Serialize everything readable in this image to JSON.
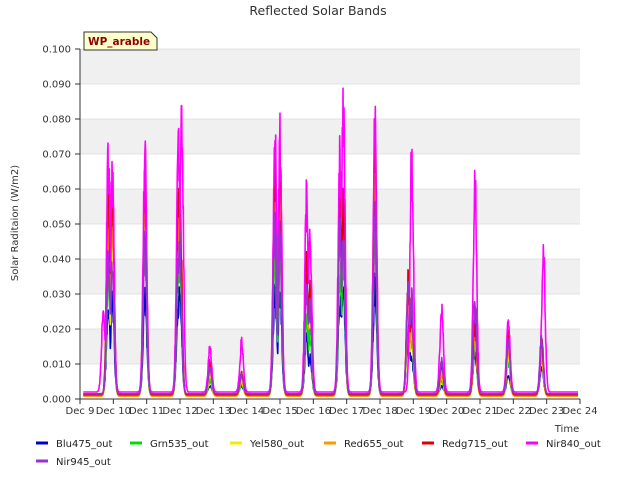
{
  "chart_data": {
    "type": "line",
    "title": "Reflected Solar Bands",
    "xlabel": "Time",
    "ylabel": "Solar Raditaion (W/m2)",
    "ylim": [
      0.0,
      0.1
    ],
    "yticks": [
      "0.000",
      "0.010",
      "0.020",
      "0.030",
      "0.040",
      "0.050",
      "0.060",
      "0.070",
      "0.080",
      "0.090",
      "0.100"
    ],
    "xlim": [
      9,
      24
    ],
    "xticks": [
      "Dec 9",
      "Dec 10",
      "Dec 11",
      "Dec 12",
      "Dec 13",
      "Dec 14",
      "Dec 15",
      "Dec 16",
      "Dec 17",
      "Dec 18",
      "Dec 19",
      "Dec 20",
      "Dec 21",
      "Dec 22",
      "Dec 23",
      "Dec 24"
    ],
    "grid": "horizontal bands",
    "legend_position": "bottom",
    "badge": "WP_arable",
    "colors": {
      "Blu475_out": "#0000cc",
      "Grn535_out": "#00dd00",
      "Yel580_out": "#eeee00",
      "Red655_out": "#ff9900",
      "Redg715_out": "#dd0000",
      "Nir840_out": "#ff00ff",
      "Nir945_out": "#9933cc"
    },
    "series": [
      {
        "name": "Blu475_out",
        "baseline": 0.0015,
        "peaks": [
          [
            9.85,
            0.03
          ],
          [
            9.97,
            0.032
          ],
          [
            10.95,
            0.035
          ],
          [
            11.95,
            0.03
          ],
          [
            12.0,
            0.035
          ],
          [
            12.9,
            0.004
          ],
          [
            13.85,
            0.004
          ],
          [
            14.85,
            0.035
          ],
          [
            15.0,
            0.034
          ],
          [
            15.8,
            0.02
          ],
          [
            15.9,
            0.014
          ],
          [
            16.8,
            0.032
          ],
          [
            16.9,
            0.036
          ],
          [
            17.85,
            0.037
          ],
          [
            18.85,
            0.024
          ],
          [
            18.95,
            0.013
          ],
          [
            19.85,
            0.004
          ],
          [
            20.85,
            0.015
          ],
          [
            21.85,
            0.008
          ],
          [
            22.85,
            0.01
          ]
        ]
      },
      {
        "name": "Grn535_out",
        "baseline": 0.001,
        "peaks": [
          [
            9.85,
            0.04
          ],
          [
            9.97,
            0.045
          ],
          [
            10.95,
            0.048
          ],
          [
            11.95,
            0.04
          ],
          [
            12.0,
            0.045
          ],
          [
            12.9,
            0.006
          ],
          [
            13.85,
            0.005
          ],
          [
            14.85,
            0.045
          ],
          [
            15.0,
            0.045
          ],
          [
            15.8,
            0.027
          ],
          [
            15.9,
            0.021
          ],
          [
            16.8,
            0.04
          ],
          [
            16.9,
            0.045
          ],
          [
            17.85,
            0.05
          ],
          [
            18.85,
            0.03
          ],
          [
            18.95,
            0.018
          ],
          [
            19.85,
            0.006
          ],
          [
            20.85,
            0.018
          ],
          [
            21.85,
            0.012
          ],
          [
            22.85,
            0.013
          ]
        ]
      },
      {
        "name": "Yel580_out",
        "baseline": 0.0008,
        "peaks": [
          [
            9.85,
            0.05
          ],
          [
            9.97,
            0.052
          ],
          [
            10.95,
            0.068
          ],
          [
            11.95,
            0.05
          ],
          [
            12.0,
            0.055
          ],
          [
            12.9,
            0.008
          ],
          [
            13.85,
            0.006
          ],
          [
            14.85,
            0.065
          ],
          [
            15.0,
            0.06
          ],
          [
            15.8,
            0.035
          ],
          [
            15.9,
            0.03
          ],
          [
            16.8,
            0.055
          ],
          [
            16.9,
            0.06
          ],
          [
            17.85,
            0.065
          ],
          [
            18.85,
            0.032
          ],
          [
            18.95,
            0.022
          ],
          [
            19.85,
            0.007
          ],
          [
            20.85,
            0.02
          ],
          [
            21.85,
            0.014
          ],
          [
            22.85,
            0.014
          ]
        ]
      },
      {
        "name": "Red655_out",
        "baseline": 0.0008,
        "peaks": [
          [
            9.85,
            0.055
          ],
          [
            9.97,
            0.058
          ],
          [
            10.95,
            0.07
          ],
          [
            11.95,
            0.055
          ],
          [
            12.0,
            0.06
          ],
          [
            12.9,
            0.009
          ],
          [
            13.85,
            0.007
          ],
          [
            14.85,
            0.07
          ],
          [
            15.0,
            0.068
          ],
          [
            15.8,
            0.04
          ],
          [
            15.9,
            0.032
          ],
          [
            16.8,
            0.06
          ],
          [
            16.9,
            0.062
          ],
          [
            17.85,
            0.075
          ],
          [
            18.85,
            0.035
          ],
          [
            18.95,
            0.024
          ],
          [
            19.85,
            0.008
          ],
          [
            20.85,
            0.022
          ],
          [
            21.85,
            0.016
          ],
          [
            22.85,
            0.015
          ]
        ]
      },
      {
        "name": "Redg715_out",
        "baseline": 0.0012,
        "peaks": [
          [
            9.85,
            0.068
          ],
          [
            9.97,
            0.07
          ],
          [
            10.95,
            0.075
          ],
          [
            11.95,
            0.063
          ],
          [
            12.0,
            0.065
          ],
          [
            12.9,
            0.012
          ],
          [
            13.85,
            0.008
          ],
          [
            14.85,
            0.075
          ],
          [
            15.0,
            0.072
          ],
          [
            15.8,
            0.045
          ],
          [
            15.9,
            0.035
          ],
          [
            16.8,
            0.065
          ],
          [
            16.9,
            0.062
          ],
          [
            17.85,
            0.08
          ],
          [
            18.85,
            0.038
          ],
          [
            18.95,
            0.028
          ],
          [
            19.85,
            0.011
          ],
          [
            20.85,
            0.025
          ],
          [
            21.85,
            0.02
          ],
          [
            22.85,
            0.018
          ]
        ]
      },
      {
        "name": "Nir840_out",
        "baseline": 0.002,
        "peaks": [
          [
            9.7,
            0.028
          ],
          [
            9.85,
            0.078
          ],
          [
            9.97,
            0.073
          ],
          [
            10.95,
            0.08
          ],
          [
            11.95,
            0.08
          ],
          [
            12.05,
            0.086
          ],
          [
            12.9,
            0.016
          ],
          [
            13.85,
            0.018
          ],
          [
            14.85,
            0.085
          ],
          [
            15.0,
            0.082
          ],
          [
            15.8,
            0.066
          ],
          [
            15.9,
            0.054
          ],
          [
            16.8,
            0.08
          ],
          [
            16.9,
            0.094
          ],
          [
            17.85,
            0.086
          ],
          [
            18.95,
            0.076
          ],
          [
            19.85,
            0.028
          ],
          [
            20.85,
            0.067
          ],
          [
            21.85,
            0.025
          ],
          [
            22.9,
            0.047
          ]
        ]
      },
      {
        "name": "Nir945_out",
        "baseline": 0.0015,
        "peaks": [
          [
            9.85,
            0.045
          ],
          [
            9.97,
            0.042
          ],
          [
            10.95,
            0.052
          ],
          [
            11.95,
            0.045
          ],
          [
            12.0,
            0.05
          ],
          [
            12.9,
            0.01
          ],
          [
            13.85,
            0.008
          ],
          [
            14.85,
            0.055
          ],
          [
            15.0,
            0.053
          ],
          [
            15.8,
            0.035
          ],
          [
            15.9,
            0.03
          ],
          [
            16.8,
            0.055
          ],
          [
            16.9,
            0.05
          ],
          [
            17.85,
            0.058
          ],
          [
            18.85,
            0.04
          ],
          [
            18.95,
            0.032
          ],
          [
            19.85,
            0.012
          ],
          [
            20.85,
            0.03
          ],
          [
            21.85,
            0.018
          ],
          [
            22.85,
            0.02
          ]
        ]
      }
    ]
  }
}
